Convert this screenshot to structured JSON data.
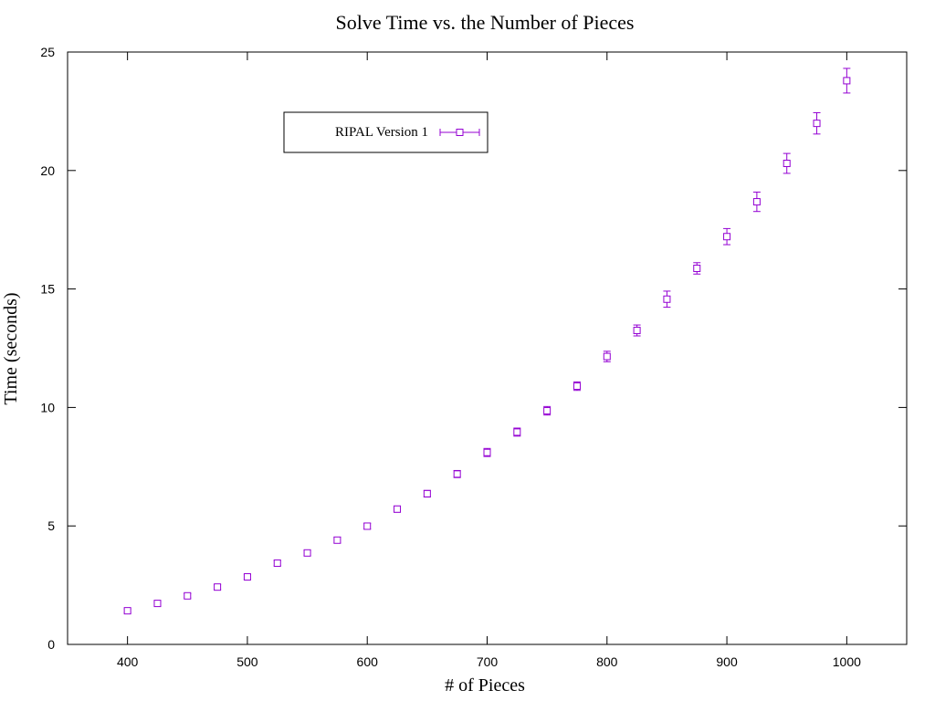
{
  "chart_data": {
    "type": "scatter",
    "title": "Solve Time vs. the Number of Pieces",
    "xlabel": "# of Pieces",
    "ylabel": "Time (seconds)",
    "xlim": [
      350,
      1050
    ],
    "ylim": [
      0,
      25
    ],
    "xticks": [
      400,
      500,
      600,
      700,
      800,
      900,
      1000
    ],
    "yticks": [
      0,
      5,
      10,
      15,
      20,
      25
    ],
    "grid": false,
    "legend_position": "top-left",
    "series": [
      {
        "name": "RIPAL Version 1",
        "color": "#9400d3",
        "marker": "open-square",
        "error_bars": true,
        "x": [
          400,
          425,
          450,
          475,
          500,
          525,
          550,
          575,
          600,
          625,
          650,
          675,
          700,
          725,
          750,
          775,
          800,
          825,
          850,
          875,
          900,
          925,
          950,
          975,
          1000
        ],
        "y": [
          1.42,
          1.73,
          2.05,
          2.42,
          2.85,
          3.43,
          3.86,
          4.4,
          4.99,
          5.71,
          6.36,
          7.19,
          8.1,
          8.96,
          9.86,
          10.9,
          12.15,
          13.25,
          14.57,
          15.87,
          17.21,
          18.68,
          20.3,
          21.99,
          23.79
        ],
        "err": [
          0.08,
          0.08,
          0.09,
          0.1,
          0.1,
          0.11,
          0.11,
          0.12,
          0.12,
          0.13,
          0.14,
          0.15,
          0.17,
          0.17,
          0.18,
          0.18,
          0.22,
          0.23,
          0.34,
          0.24,
          0.34,
          0.41,
          0.42,
          0.45,
          0.52
        ]
      }
    ]
  }
}
